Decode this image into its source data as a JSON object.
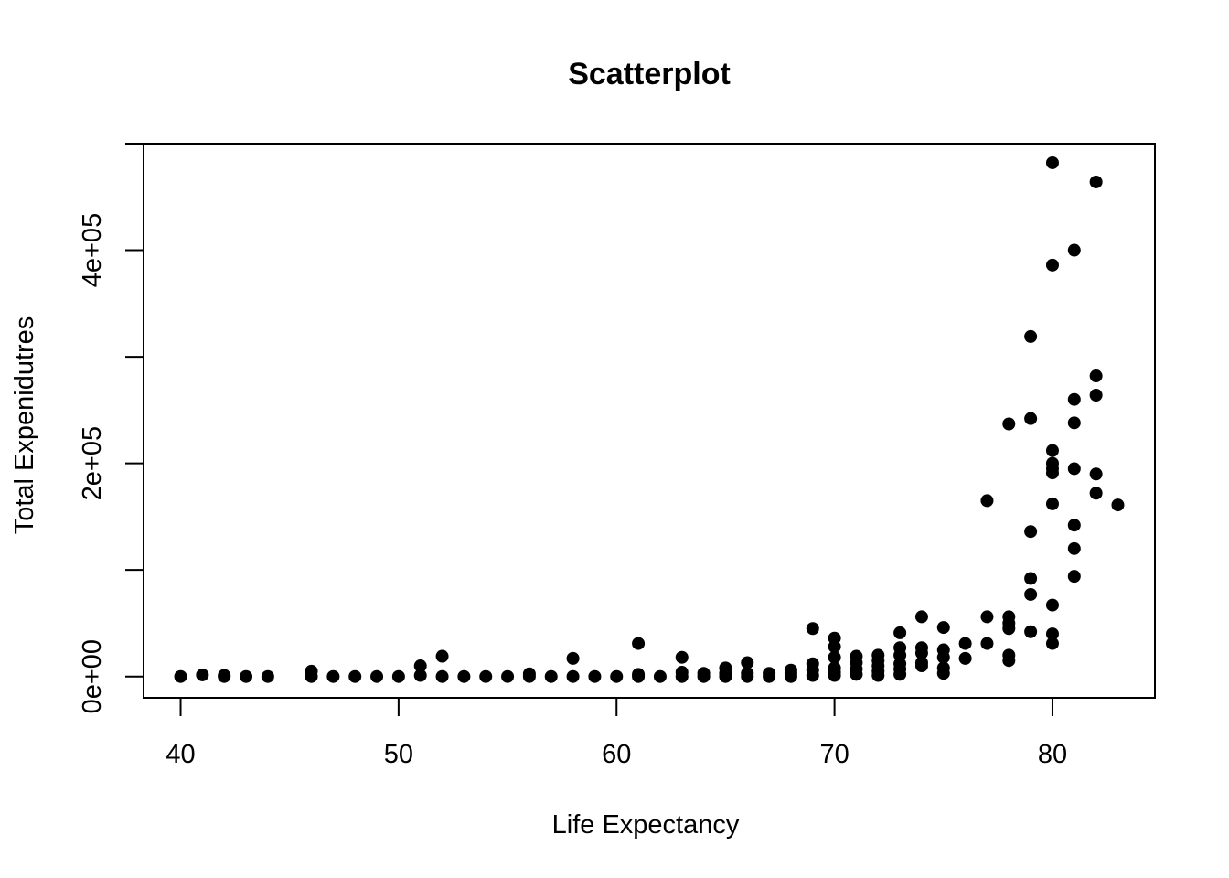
{
  "chart_data": {
    "type": "scatter",
    "title": "Scatterplot",
    "xlabel": "Life Expectancy",
    "ylabel": "Total Expenidutres",
    "xlim": [
      38.3,
      84.7
    ],
    "ylim": [
      -20000,
      500000
    ],
    "x_ticks": [
      {
        "value": 40,
        "label": "40"
      },
      {
        "value": 50,
        "label": "50"
      },
      {
        "value": 60,
        "label": "60"
      },
      {
        "value": 70,
        "label": "70"
      },
      {
        "value": 80,
        "label": "80"
      }
    ],
    "y_ticks": [
      {
        "value": 0,
        "label": "0e+00"
      },
      {
        "value": 100000,
        "label": ""
      },
      {
        "value": 200000,
        "label": "2e+05"
      },
      {
        "value": 300000,
        "label": ""
      },
      {
        "value": 400000,
        "label": "4e+05"
      },
      {
        "value": 500000,
        "label": ""
      }
    ],
    "grid": false,
    "legend": "none",
    "point_color": "#000000",
    "points": [
      [
        40,
        0
      ],
      [
        41,
        1500
      ],
      [
        42,
        1000
      ],
      [
        42,
        0
      ],
      [
        43,
        0
      ],
      [
        44,
        0
      ],
      [
        46,
        5000
      ],
      [
        46,
        0
      ],
      [
        47,
        0
      ],
      [
        48,
        0
      ],
      [
        49,
        0
      ],
      [
        50,
        0
      ],
      [
        51,
        10000
      ],
      [
        51,
        1000
      ],
      [
        52,
        19000
      ],
      [
        52,
        0
      ],
      [
        53,
        0
      ],
      [
        54,
        0
      ],
      [
        55,
        0
      ],
      [
        56,
        2500
      ],
      [
        56,
        0
      ],
      [
        57,
        0
      ],
      [
        58,
        17000
      ],
      [
        58,
        0
      ],
      [
        59,
        0
      ],
      [
        60,
        0
      ],
      [
        61,
        31000
      ],
      [
        61,
        2000
      ],
      [
        61,
        0
      ],
      [
        62,
        0
      ],
      [
        63,
        18000
      ],
      [
        63,
        4000
      ],
      [
        63,
        0
      ],
      [
        64,
        3000
      ],
      [
        64,
        0
      ],
      [
        65,
        8000
      ],
      [
        65,
        3000
      ],
      [
        65,
        0
      ],
      [
        66,
        13000
      ],
      [
        66,
        3000
      ],
      [
        66,
        0
      ],
      [
        67,
        3000
      ],
      [
        67,
        0
      ],
      [
        68,
        6000
      ],
      [
        68,
        3000
      ],
      [
        68,
        0
      ],
      [
        69,
        45000
      ],
      [
        69,
        12000
      ],
      [
        69,
        6000
      ],
      [
        69,
        1000
      ],
      [
        70,
        36000
      ],
      [
        70,
        28000
      ],
      [
        70,
        18000
      ],
      [
        70,
        8000
      ],
      [
        70,
        4000
      ],
      [
        70,
        1000
      ],
      [
        71,
        19000
      ],
      [
        71,
        13000
      ],
      [
        71,
        7000
      ],
      [
        71,
        2000
      ],
      [
        72,
        20000
      ],
      [
        72,
        15000
      ],
      [
        72,
        10000
      ],
      [
        72,
        5000
      ],
      [
        72,
        1000
      ],
      [
        73,
        41000
      ],
      [
        73,
        27000
      ],
      [
        73,
        20000
      ],
      [
        73,
        12000
      ],
      [
        73,
        7000
      ],
      [
        73,
        2000
      ],
      [
        74,
        56000
      ],
      [
        74,
        27000
      ],
      [
        74,
        22000
      ],
      [
        74,
        13000
      ],
      [
        74,
        10000
      ],
      [
        75,
        46000
      ],
      [
        75,
        25000
      ],
      [
        75,
        18000
      ],
      [
        75,
        8000
      ],
      [
        75,
        3000
      ],
      [
        76,
        31000
      ],
      [
        76,
        17000
      ],
      [
        77,
        165000
      ],
      [
        77,
        56000
      ],
      [
        77,
        31000
      ],
      [
        78,
        237000
      ],
      [
        78,
        56000
      ],
      [
        78,
        50000
      ],
      [
        78,
        45000
      ],
      [
        78,
        20000
      ],
      [
        78,
        15000
      ],
      [
        79,
        319000
      ],
      [
        79,
        242000
      ],
      [
        79,
        136000
      ],
      [
        79,
        92000
      ],
      [
        79,
        77000
      ],
      [
        79,
        42000
      ],
      [
        80,
        482000
      ],
      [
        80,
        386000
      ],
      [
        80,
        212000
      ],
      [
        80,
        200000
      ],
      [
        80,
        195000
      ],
      [
        80,
        191000
      ],
      [
        80,
        162000
      ],
      [
        80,
        67000
      ],
      [
        80,
        40000
      ],
      [
        80,
        31000
      ],
      [
        81,
        400000
      ],
      [
        81,
        260000
      ],
      [
        81,
        238000
      ],
      [
        81,
        195000
      ],
      [
        81,
        142000
      ],
      [
        81,
        120000
      ],
      [
        81,
        94000
      ],
      [
        82,
        464000
      ],
      [
        82,
        282000
      ],
      [
        82,
        264000
      ],
      [
        82,
        190000
      ],
      [
        82,
        172000
      ],
      [
        83,
        161000
      ]
    ]
  }
}
